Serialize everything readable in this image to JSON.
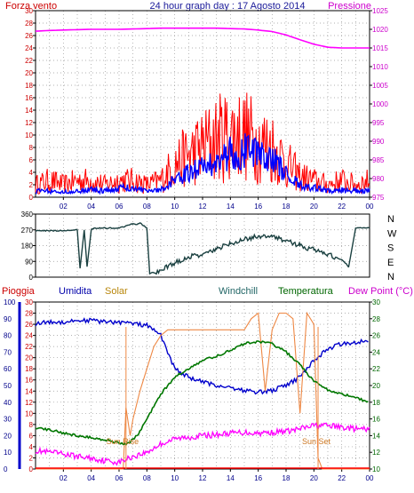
{
  "chart_data": [
    {
      "type": "line",
      "title": "24 hour graph day : 17 Agosto 2014",
      "left_label": "Forza vento",
      "right_label": "Pressione",
      "x_ticks": [
        "02",
        "04",
        "06",
        "08",
        "10",
        "12",
        "14",
        "16",
        "18",
        "20",
        "22",
        "00"
      ],
      "ylim_left": [
        0,
        30
      ],
      "yticks_left": [
        "0",
        "2",
        "4",
        "6",
        "8",
        "10",
        "12",
        "14",
        "16",
        "18",
        "20",
        "22",
        "24",
        "26",
        "28",
        "30"
      ],
      "ylim_right": [
        975,
        1025
      ],
      "yticks_right": [
        "975",
        "980",
        "985",
        "990",
        "995",
        "1000",
        "1005",
        "1010",
        "1015",
        "1020",
        "1025"
      ],
      "colors": {
        "gust": "#ff0000",
        "wind": "#0000ff",
        "pressure": "#ff00ff"
      },
      "series": [
        {
          "key": "pressure",
          "axis": "right",
          "x": [
            0,
            1,
            2,
            3,
            4,
            5,
            6,
            7,
            8,
            9,
            10,
            11,
            12,
            13,
            14,
            15,
            16,
            17,
            18,
            19,
            20,
            21,
            22,
            23,
            24
          ],
          "values": [
            1019.5,
            1019.7,
            1019.8,
            1019.9,
            1020.0,
            1020.0,
            1020.0,
            1020.1,
            1020.2,
            1020.3,
            1020.3,
            1020.3,
            1020.3,
            1020.3,
            1020.2,
            1020.1,
            1019.8,
            1019.4,
            1018.5,
            1017.2,
            1016.0,
            1015.2,
            1015.0,
            1015.0,
            1015.0
          ]
        },
        {
          "key": "gust",
          "axis": "left",
          "x": [
            0,
            1,
            2,
            3,
            4,
            5,
            6,
            7,
            8,
            9,
            10,
            11,
            12,
            13,
            14,
            15,
            16,
            17,
            18,
            19,
            20,
            21,
            22,
            23,
            24
          ],
          "values": [
            3,
            4,
            3,
            4,
            4,
            3,
            4,
            4,
            3,
            4,
            8,
            10,
            12,
            14,
            15,
            15,
            13,
            12,
            8,
            5,
            4,
            3,
            4,
            3,
            4
          ]
        },
        {
          "key": "wind",
          "axis": "left",
          "x": [
            0,
            1,
            2,
            3,
            4,
            5,
            6,
            7,
            8,
            9,
            10,
            11,
            12,
            13,
            14,
            15,
            16,
            17,
            18,
            19,
            20,
            21,
            22,
            23,
            24
          ],
          "values": [
            1,
            1,
            0.8,
            1,
            1.2,
            1,
            1.5,
            1.5,
            1,
            1.2,
            3,
            4,
            5,
            6,
            7,
            7.5,
            7,
            6,
            4,
            2,
            1.5,
            1,
            1.2,
            1,
            1
          ]
        }
      ]
    },
    {
      "type": "line",
      "ylim": [
        0,
        360
      ],
      "yticks": [
        "0",
        "90",
        "180",
        "270",
        "360"
      ],
      "compass": [
        "N",
        "W",
        "S",
        "E",
        "N"
      ],
      "color": "#1a4040",
      "series": [
        {
          "key": "direction",
          "x": [
            0,
            2,
            3,
            3.2,
            3.5,
            3.7,
            4.0,
            4.2,
            6,
            7,
            7.2,
            7.5,
            8,
            8.2,
            9,
            10,
            11,
            12,
            13,
            14,
            15,
            16,
            17,
            18,
            19,
            20,
            21,
            22,
            22.5,
            23,
            24
          ],
          "values": [
            265,
            265,
            270,
            50,
            270,
            60,
            270,
            280,
            280,
            305,
            300,
            310,
            280,
            20,
            40,
            80,
            115,
            130,
            160,
            190,
            215,
            235,
            230,
            210,
            180,
            155,
            130,
            100,
            60,
            280,
            280
          ]
        }
      ]
    },
    {
      "type": "line",
      "labels": [
        "Pioggia",
        "Umidita",
        "Solar",
        "Windchill",
        "Temperatura",
        "Dew Point (°C)"
      ],
      "ylim_rain": [
        0,
        30
      ],
      "yticks_rain": [
        "0",
        "2",
        "4",
        "6",
        "8",
        "10",
        "12",
        "14",
        "16",
        "18",
        "20",
        "22",
        "24",
        "26",
        "28",
        "30"
      ],
      "ylim_humidity": [
        0,
        100
      ],
      "yticks_humidity": [
        "0",
        "10",
        "20",
        "30",
        "40",
        "50",
        "60",
        "70",
        "80",
        "90",
        "100"
      ],
      "ylim_temp": [
        10,
        30
      ],
      "yticks_temp": [
        "10",
        "12",
        "14",
        "16",
        "18",
        "20",
        "22",
        "24",
        "26",
        "28",
        "30"
      ],
      "annotations": [
        {
          "text": "Sun Rise",
          "x": 6.5
        },
        {
          "text": "Sun Set",
          "x": 20.3
        }
      ],
      "colors": {
        "humidity": "#0000cc",
        "solar": "#ee8844",
        "temperature": "#007700",
        "dewpoint": "#ff00ff",
        "rain": "#ff0000",
        "sun": "#ee8844"
      },
      "series": [
        {
          "key": "humidity",
          "axis": "humidity",
          "x": [
            0,
            1,
            2,
            3,
            4,
            5,
            6,
            7,
            8,
            9,
            10,
            11,
            12,
            13,
            14,
            15,
            16,
            17,
            18,
            19,
            20,
            21,
            22,
            23,
            24
          ],
          "values": [
            87,
            88,
            88,
            89,
            89,
            88,
            88,
            87,
            86,
            80,
            60,
            55,
            52,
            50,
            49,
            47,
            46,
            47,
            50,
            55,
            65,
            72,
            75,
            76,
            77
          ]
        },
        {
          "key": "solar",
          "axis": "rain",
          "x": [
            0,
            6.3,
            6.5,
            6.8,
            7,
            7.5,
            8,
            8.5,
            9,
            9.5,
            10,
            11,
            12,
            13,
            14,
            15,
            15.5,
            16,
            16.5,
            17,
            17.5,
            18,
            18.5,
            19,
            19.5,
            20,
            20.3,
            20.6,
            24
          ],
          "values": [
            0,
            0,
            11,
            6,
            9,
            14,
            18,
            22,
            24,
            25,
            25,
            25,
            25,
            25,
            25,
            25,
            27,
            28,
            14,
            25,
            28,
            28,
            27,
            10,
            28,
            26,
            2,
            0,
            0
          ]
        },
        {
          "key": "temperature",
          "axis": "temp",
          "x": [
            0,
            1,
            2,
            3,
            4,
            5,
            6,
            6.5,
            7,
            7.5,
            8,
            9,
            10,
            11,
            12,
            13,
            14,
            15,
            16,
            17,
            18,
            19,
            20,
            21,
            22,
            23,
            24
          ],
          "values": [
            15,
            14.7,
            14.3,
            14.0,
            13.8,
            13.5,
            13.2,
            13.0,
            13.5,
            14.5,
            16.0,
            19,
            21,
            22,
            23,
            23.5,
            24.2,
            25,
            25.3,
            25.0,
            24,
            22.5,
            20.5,
            19.5,
            19.0,
            18.5,
            18.0
          ]
        },
        {
          "key": "dewpoint",
          "axis": "temp",
          "x": [
            0,
            1,
            2,
            3,
            4,
            5,
            6,
            7,
            8,
            9,
            10,
            11,
            12,
            13,
            14,
            15,
            16,
            17,
            18,
            19,
            20,
            21,
            22,
            23,
            24
          ],
          "values": [
            12.2,
            12.0,
            11.8,
            11.5,
            11.3,
            11.0,
            10.8,
            11.5,
            12.0,
            13.0,
            13.6,
            13.8,
            14.0,
            14.1,
            14.3,
            14.4,
            14.3,
            14.4,
            14.5,
            14.8,
            15.2,
            15.2,
            15.0,
            14.8,
            14.7
          ]
        },
        {
          "key": "rain",
          "axis": "rain",
          "x": [
            0,
            24
          ],
          "values": [
            0,
            0
          ]
        }
      ]
    }
  ]
}
